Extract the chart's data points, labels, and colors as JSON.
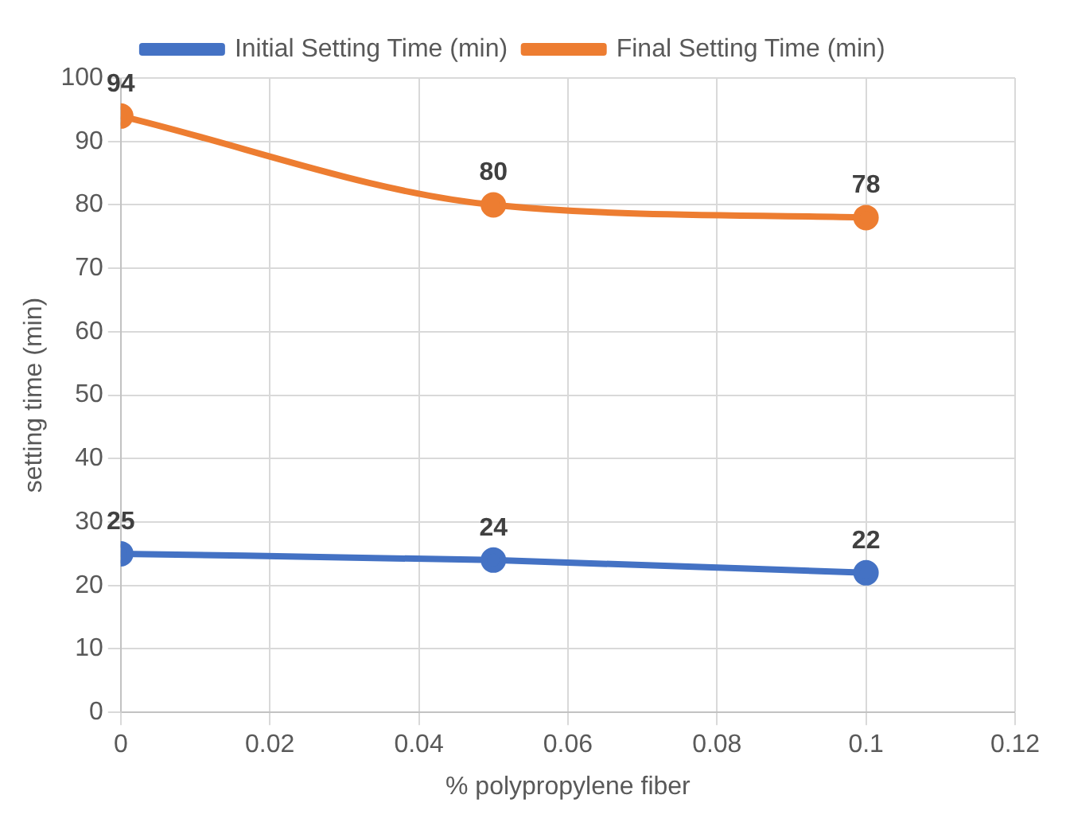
{
  "chart_data": {
    "type": "line",
    "xlabel": "% polypropylene fiber",
    "ylabel": "setting time (min)",
    "x": [
      0,
      0.05,
      0.1
    ],
    "series": [
      {
        "name": "Initial Setting Time (min)",
        "color": "#4472c4",
        "values": [
          25,
          24,
          22
        ]
      },
      {
        "name": "Final Setting Time (min)",
        "color": "#ed7d31",
        "values": [
          94,
          80,
          78
        ]
      }
    ],
    "xlim": [
      0,
      0.12
    ],
    "xticks": [
      0,
      0.02,
      0.04,
      0.06,
      0.08,
      0.1,
      0.12
    ],
    "ylim": [
      0,
      100
    ],
    "yticks": [
      0,
      10,
      20,
      30,
      40,
      50,
      60,
      70,
      80,
      90,
      100
    ],
    "grid": true,
    "legend": "top",
    "marker": "circle",
    "line_style": "solid",
    "data_labels": true
  }
}
